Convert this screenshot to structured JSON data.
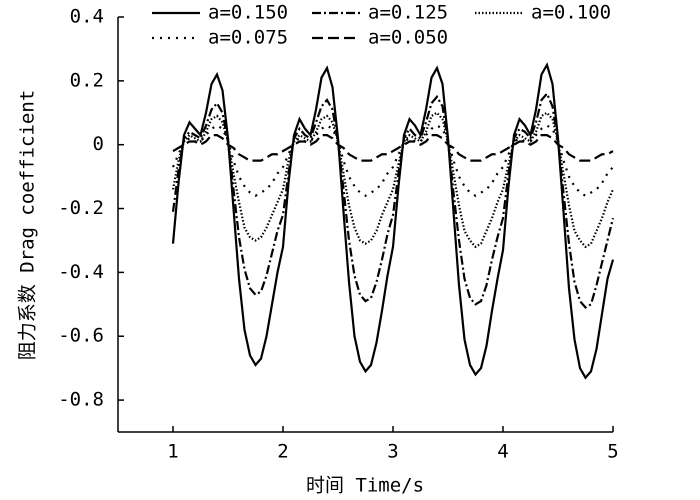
{
  "chart_data": {
    "type": "line",
    "xlabel": "时间 Time/s",
    "ylabel": "阻力系数 Drag coefficient",
    "xlim": [
      0.5,
      5
    ],
    "xticks": [
      1,
      2,
      3,
      4,
      5
    ],
    "ylim": [
      -0.9,
      0.4
    ],
    "yticks": [
      -0.8,
      -0.6,
      -0.4,
      -0.2,
      0,
      0.2,
      0.4
    ],
    "x": [
      1,
      1.05,
      1.1,
      1.15,
      1.2,
      1.25,
      1.3,
      1.35,
      1.4,
      1.45,
      1.5,
      1.55,
      1.6,
      1.65,
      1.7,
      1.75,
      1.8,
      1.85,
      1.9,
      1.95,
      2,
      2.05,
      2.1,
      2.15,
      2.2,
      2.25,
      2.3,
      2.35,
      2.4,
      2.45,
      2.5,
      2.55,
      2.6,
      2.65,
      2.7,
      2.75,
      2.8,
      2.85,
      2.9,
      2.95,
      3,
      3.05,
      3.1,
      3.15,
      3.2,
      3.25,
      3.3,
      3.35,
      3.4,
      3.45,
      3.5,
      3.55,
      3.6,
      3.65,
      3.7,
      3.75,
      3.8,
      3.85,
      3.9,
      3.95,
      4,
      4.05,
      4.1,
      4.15,
      4.2,
      4.25,
      4.3,
      4.35,
      4.4,
      4.45,
      4.5,
      4.55,
      4.6,
      4.65,
      4.7,
      4.75,
      4.8,
      4.85,
      4.9,
      4.95,
      5
    ],
    "series": [
      {
        "name": "a=0.150",
        "color": "#000000",
        "linestyle": "solid",
        "values": [
          -0.31,
          -0.12,
          0.03,
          0.07,
          0.05,
          0.03,
          0.1,
          0.19,
          0.22,
          0.17,
          0.02,
          -0.2,
          -0.42,
          -0.58,
          -0.66,
          -0.69,
          -0.67,
          -0.6,
          -0.5,
          -0.4,
          -0.32,
          -0.12,
          0.03,
          0.08,
          0.05,
          0.03,
          0.11,
          0.21,
          0.24,
          0.18,
          0.02,
          -0.21,
          -0.43,
          -0.6,
          -0.68,
          -0.71,
          -0.69,
          -0.62,
          -0.52,
          -0.41,
          -0.32,
          -0.13,
          0.03,
          0.08,
          0.06,
          0.03,
          0.11,
          0.21,
          0.24,
          0.19,
          0.02,
          -0.21,
          -0.44,
          -0.61,
          -0.69,
          -0.72,
          -0.7,
          -0.63,
          -0.52,
          -0.42,
          -0.33,
          -0.13,
          0.03,
          0.08,
          0.06,
          0.03,
          0.11,
          0.22,
          0.25,
          0.19,
          0.02,
          -0.21,
          -0.45,
          -0.61,
          -0.7,
          -0.73,
          -0.71,
          -0.64,
          -0.53,
          -0.42,
          -0.36
        ]
      },
      {
        "name": "a=0.125",
        "color": "#000000",
        "linestyle": "dashdot",
        "values": [
          -0.21,
          -0.08,
          0.02,
          0.04,
          0.03,
          0.02,
          0.06,
          0.11,
          0.13,
          0.1,
          0.01,
          -0.14,
          -0.29,
          -0.39,
          -0.45,
          -0.47,
          -0.46,
          -0.41,
          -0.34,
          -0.27,
          -0.22,
          -0.09,
          0.02,
          0.05,
          0.03,
          0.02,
          0.07,
          0.12,
          0.14,
          0.11,
          0.01,
          -0.14,
          -0.3,
          -0.41,
          -0.47,
          -0.49,
          -0.48,
          -0.43,
          -0.36,
          -0.28,
          -0.22,
          -0.09,
          0.02,
          0.05,
          0.03,
          0.02,
          0.07,
          0.13,
          0.15,
          0.12,
          0.01,
          -0.15,
          -0.3,
          -0.42,
          -0.48,
          -0.5,
          -0.49,
          -0.44,
          -0.36,
          -0.29,
          -0.23,
          -0.09,
          0.02,
          0.05,
          0.04,
          0.02,
          0.07,
          0.14,
          0.16,
          0.12,
          0.01,
          -0.15,
          -0.31,
          -0.43,
          -0.49,
          -0.51,
          -0.5,
          -0.44,
          -0.37,
          -0.3,
          -0.23
        ]
      },
      {
        "name": "a=0.100",
        "color": "#000000",
        "linestyle": "dotted",
        "values": [
          -0.14,
          -0.05,
          0.01,
          0.03,
          0.02,
          0.01,
          0.04,
          0.08,
          0.09,
          0.07,
          0.01,
          -0.09,
          -0.18,
          -0.26,
          -0.29,
          -0.3,
          -0.29,
          -0.26,
          -0.22,
          -0.18,
          -0.14,
          -0.05,
          0.01,
          0.03,
          0.02,
          0.01,
          0.04,
          0.08,
          0.09,
          0.07,
          0.01,
          -0.09,
          -0.19,
          -0.26,
          -0.3,
          -0.31,
          -0.3,
          -0.27,
          -0.22,
          -0.18,
          -0.14,
          -0.06,
          0.01,
          0.03,
          0.02,
          0.01,
          0.04,
          0.09,
          0.1,
          0.08,
          0.01,
          -0.09,
          -0.19,
          -0.27,
          -0.3,
          -0.32,
          -0.31,
          -0.27,
          -0.23,
          -0.18,
          -0.14,
          -0.06,
          0.01,
          0.03,
          0.02,
          0.01,
          0.04,
          0.09,
          0.1,
          0.08,
          0.01,
          -0.09,
          -0.19,
          -0.27,
          -0.3,
          -0.32,
          -0.31,
          -0.27,
          -0.23,
          -0.18,
          -0.14
        ]
      },
      {
        "name": "a=0.075",
        "color": "#000000",
        "linestyle": "sparse-dotted",
        "values": [
          -0.07,
          -0.03,
          0.01,
          0.02,
          0.01,
          0.01,
          0.03,
          0.05,
          0.06,
          0.05,
          0.01,
          -0.05,
          -0.1,
          -0.13,
          -0.15,
          -0.16,
          -0.15,
          -0.14,
          -0.12,
          -0.09,
          -0.07,
          -0.03,
          0.01,
          0.02,
          0.01,
          0.01,
          0.03,
          0.05,
          0.06,
          0.05,
          0.01,
          -0.05,
          -0.1,
          -0.13,
          -0.15,
          -0.16,
          -0.15,
          -0.14,
          -0.12,
          -0.09,
          -0.07,
          -0.03,
          0.01,
          0.02,
          0.01,
          0.01,
          0.03,
          0.05,
          0.06,
          0.05,
          0.01,
          -0.05,
          -0.1,
          -0.13,
          -0.15,
          -0.16,
          -0.15,
          -0.14,
          -0.12,
          -0.09,
          -0.07,
          -0.03,
          0.01,
          0.02,
          0.01,
          0.01,
          0.03,
          0.05,
          0.06,
          0.05,
          0.01,
          -0.05,
          -0.1,
          -0.13,
          -0.15,
          -0.16,
          -0.15,
          -0.14,
          -0.12,
          -0.09,
          -0.07
        ]
      },
      {
        "name": "a=0.050",
        "color": "#000000",
        "linestyle": "dashed",
        "values": [
          -0.02,
          -0.01,
          0.0,
          0.01,
          0.01,
          0.0,
          0.01,
          0.03,
          0.03,
          0.02,
          0.0,
          -0.01,
          -0.03,
          -0.04,
          -0.05,
          -0.05,
          -0.05,
          -0.04,
          -0.03,
          -0.03,
          -0.02,
          -0.01,
          0.0,
          0.01,
          0.01,
          0.0,
          0.01,
          0.03,
          0.03,
          0.02,
          0.0,
          -0.01,
          -0.03,
          -0.04,
          -0.05,
          -0.05,
          -0.05,
          -0.04,
          -0.03,
          -0.03,
          -0.02,
          -0.01,
          0.0,
          0.01,
          0.01,
          0.0,
          0.01,
          0.03,
          0.03,
          0.02,
          0.0,
          -0.01,
          -0.03,
          -0.04,
          -0.05,
          -0.05,
          -0.05,
          -0.04,
          -0.03,
          -0.03,
          -0.02,
          -0.01,
          0.0,
          0.01,
          0.01,
          0.0,
          0.01,
          0.03,
          0.03,
          0.02,
          0.0,
          -0.01,
          -0.03,
          -0.04,
          -0.05,
          -0.05,
          -0.05,
          -0.04,
          -0.03,
          -0.03,
          -0.02
        ]
      }
    ]
  }
}
